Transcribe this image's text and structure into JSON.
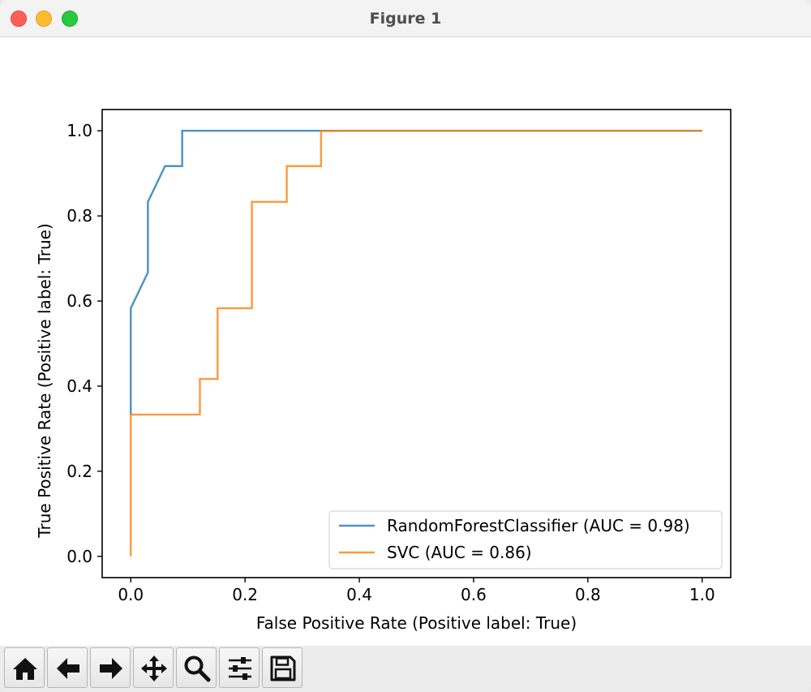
{
  "window": {
    "title": "Figure 1"
  },
  "toolbar": {
    "buttons": [
      {
        "icon": "home-icon"
      },
      {
        "icon": "back-arrow-icon"
      },
      {
        "icon": "forward-arrow-icon"
      },
      {
        "icon": "pan-icon"
      },
      {
        "icon": "zoom-icon"
      },
      {
        "icon": "configure-subplots-icon"
      },
      {
        "icon": "save-icon"
      }
    ]
  },
  "chart_data": {
    "type": "line",
    "xlabel": "False Positive Rate (Positive label: True)",
    "ylabel": "True Positive Rate (Positive label: True)",
    "xlim": [
      -0.05,
      1.05
    ],
    "ylim": [
      -0.05,
      1.05
    ],
    "xticks": [
      "0.0",
      "0.2",
      "0.4",
      "0.6",
      "0.8",
      "1.0"
    ],
    "yticks": [
      "0.0",
      "0.2",
      "0.4",
      "0.6",
      "0.8",
      "1.0"
    ],
    "grid": false,
    "legend_position": "lower-right",
    "series": [
      {
        "name": "RandomForestClassifier (AUC = 0.98)",
        "color": "#1f77b4",
        "x": [
          0.0,
          0.0,
          0.03,
          0.03,
          0.06,
          0.09,
          0.09,
          1.0
        ],
        "y": [
          0.333,
          0.583,
          0.667,
          0.833,
          0.917,
          0.917,
          1.0,
          1.0
        ]
      },
      {
        "name": "SVC (AUC = 0.86)",
        "color": "#ff7f0e",
        "x": [
          0.0,
          0.0,
          0.121,
          0.121,
          0.152,
          0.152,
          0.212,
          0.212,
          0.273,
          0.273,
          0.333,
          0.333,
          1.0
        ],
        "y": [
          0.0,
          0.333,
          0.333,
          0.417,
          0.417,
          0.583,
          0.583,
          0.833,
          0.833,
          0.917,
          0.917,
          1.0,
          1.0
        ]
      }
    ]
  }
}
